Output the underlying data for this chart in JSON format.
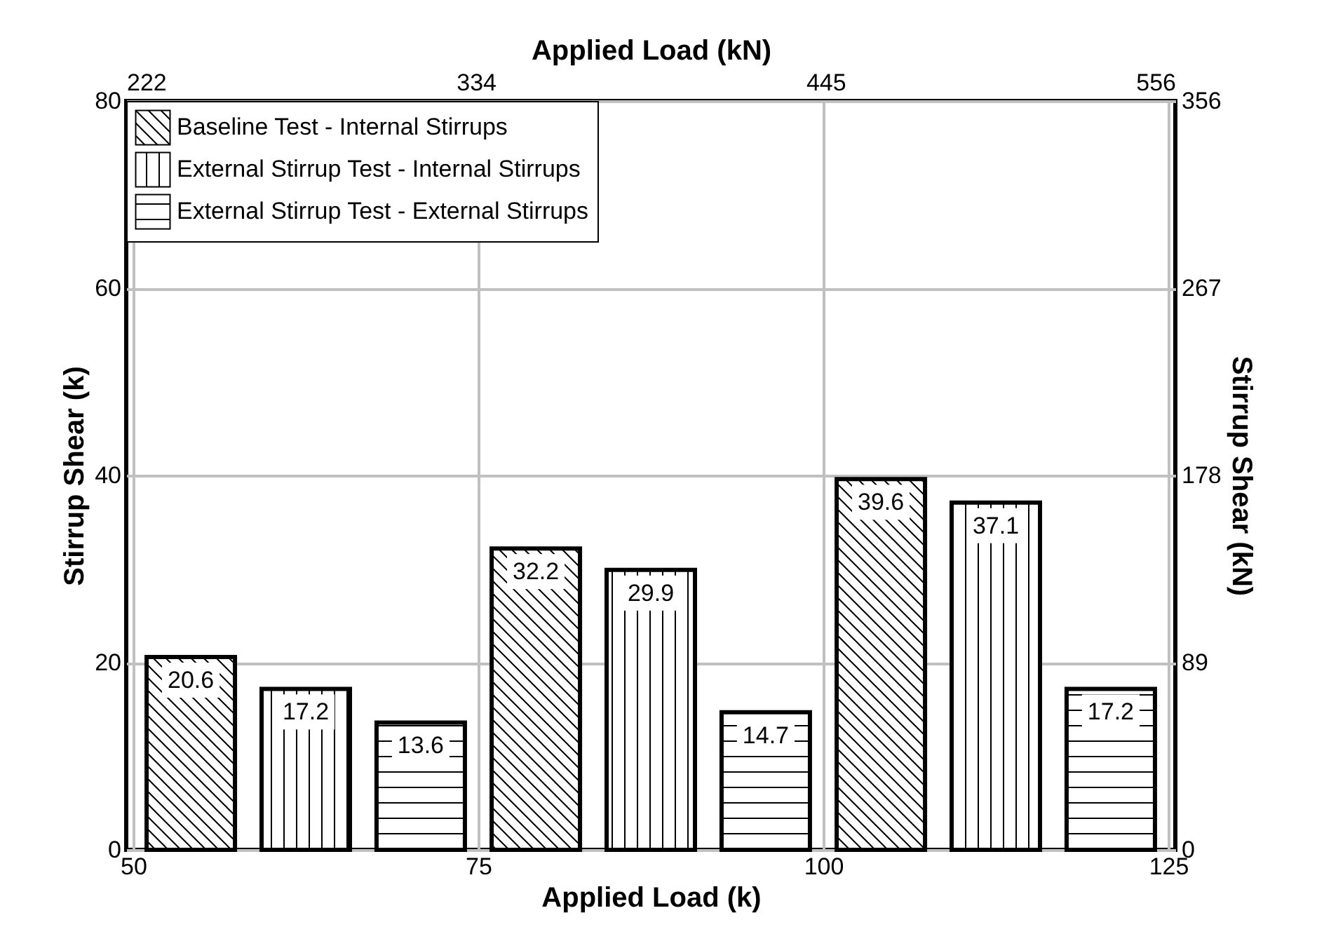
{
  "chart_data": {
    "type": "bar",
    "xlabel": "Applied Load (k)",
    "ylabel": "Stirrup Shear (k)",
    "x2label": "Applied Load (kN)",
    "y2label": "Stirrup Shear (kN)",
    "xlim": [
      50,
      125
    ],
    "xticks": [
      50,
      75,
      100,
      125
    ],
    "ylim": [
      0,
      80
    ],
    "yticks": [
      0,
      20,
      40,
      60,
      80
    ],
    "x2lim": [
      222.4,
      556
    ],
    "x2ticks": [
      {
        "value": 222.4,
        "label": "222"
      },
      {
        "value": 333.6,
        "label": "334"
      },
      {
        "value": 444.8,
        "label": "445"
      },
      {
        "value": 556,
        "label": "556"
      }
    ],
    "y2lim": [
      0,
      355.84
    ],
    "y2ticks": [
      0,
      {
        "value": 88.96,
        "label": "89"
      },
      {
        "value": 177.92,
        "label": "178"
      },
      {
        "value": 266.88,
        "label": "267"
      },
      {
        "value": 355.84,
        "label": "356"
      }
    ],
    "grid": true,
    "legend": "top left",
    "data_labels": true,
    "series": [
      {
        "name": "Baseline Test -  Internal Stirrups",
        "color": "#000000",
        "x": [
          54.17,
          79.17,
          104.17
        ],
        "values": [
          20.6,
          32.2,
          39.6
        ]
      },
      {
        "name": "External Stirrup Test - Internal Stirrups",
        "color": "#000000",
        "x": [
          62.5,
          87.5,
          112.5
        ],
        "values": [
          17.2,
          29.9,
          37.1
        ]
      },
      {
        "name": "External Stirrup Test - External Stirrups",
        "color": "#000000",
        "x": [
          70.83,
          95.83,
          120.83
        ],
        "values": [
          13.6,
          14.7,
          17.2
        ]
      }
    ]
  }
}
